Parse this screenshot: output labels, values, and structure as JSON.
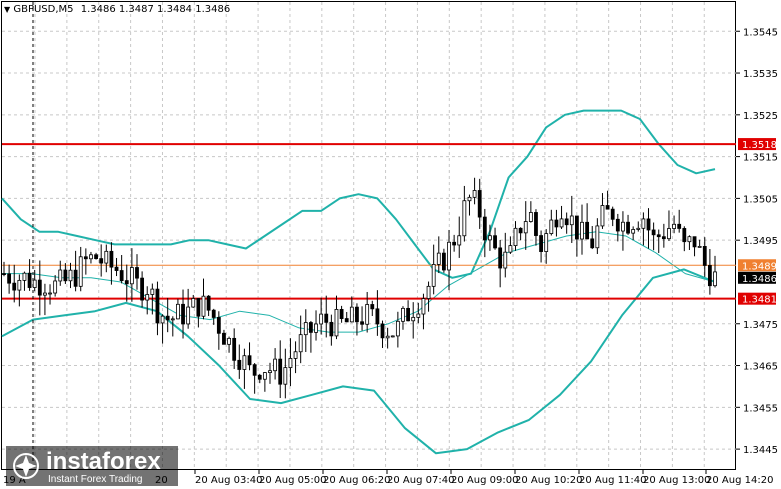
{
  "header": {
    "arrow": "▼",
    "symbol": "GBPUSD,M5",
    "ohlc": "1.3486 1.3487 1.3484 1.3486"
  },
  "colors": {
    "candle": "#000000",
    "bollinger": "#20b2aa",
    "level_line": "#e00000",
    "current_line": "#f08030",
    "label_red": "#e00000",
    "label_orange": "#f08030",
    "grid": "#c8c8c8"
  },
  "price_axis": {
    "ticks": [
      "1.3545",
      "1.3535",
      "1.3525",
      "1.3515",
      "1.3505",
      "1.3495",
      "1.3475",
      "1.3465",
      "1.3455",
      "1.3445"
    ]
  },
  "time_axis": {
    "ticks": [
      "20 Aug 03:40",
      "20 Aug 05:00",
      "20 Aug 06:20",
      "20 Aug 07:40",
      "20 Aug 09:00",
      "20 Aug 10:20",
      "20 Aug 11:40",
      "20 Aug 13:00",
      "20 Aug 14:20"
    ],
    "partial_first": "19 A",
    "partial_second": "20"
  },
  "levels": {
    "resistance": "1.3518",
    "current": "1.3489",
    "last": "1.3486",
    "support": "1.3481"
  },
  "watermark": {
    "brand": "instaforex",
    "tagline": "Instant Forex Trading"
  },
  "chart_data": {
    "type": "candlestick",
    "symbol": "GBPUSD",
    "timeframe": "M5",
    "y_range": [
      1.344,
      1.3552
    ],
    "x_ticks": [
      "20 Aug 03:40",
      "20 Aug 05:00",
      "20 Aug 06:20",
      "20 Aug 07:40",
      "20 Aug 09:00",
      "20 Aug 10:20",
      "20 Aug 11:40",
      "20 Aug 13:00",
      "20 Aug 14:20"
    ],
    "horizontal_levels": [
      1.3518,
      1.3489,
      1.3481
    ],
    "close_path": [
      1.3487,
      1.3486,
      1.3486,
      1.3485,
      1.3485,
      1.3484,
      1.3485,
      1.3487,
      1.349,
      1.3491,
      1.3489,
      1.3488,
      1.3486,
      1.3484,
      1.3484,
      1.3478,
      1.3476,
      1.3477,
      1.3478,
      1.348,
      1.3478,
      1.3474,
      1.347,
      1.3467,
      1.3463,
      1.3465,
      1.3464,
      1.3463,
      1.3468,
      1.3471,
      1.3474,
      1.3476,
      1.3475,
      1.3475,
      1.3476,
      1.3477,
      1.3476,
      1.3474,
      1.3473,
      1.3477,
      1.348,
      1.3483,
      1.3488,
      1.3492,
      1.3497,
      1.3505,
      1.3503,
      1.3495,
      1.3491,
      1.349,
      1.3498,
      1.3502,
      1.3493,
      1.3498,
      1.3504,
      1.35,
      1.3496,
      1.3494,
      1.35,
      1.3502,
      1.3499,
      1.35,
      1.3501,
      1.3495,
      1.3497,
      1.3499,
      1.3493,
      1.3495,
      1.3489,
      1.3486
    ],
    "bollinger_upper": [
      1.3505,
      1.35,
      1.3497,
      1.3497,
      1.3496,
      1.3495,
      1.3494,
      1.3494,
      1.3494,
      1.3494,
      1.3495,
      1.3495,
      1.3494,
      1.3493,
      1.3496,
      1.3499,
      1.3502,
      1.3502,
      1.3505,
      1.3506,
      1.3505,
      1.35,
      1.3494,
      1.3488,
      1.3486,
      1.3487,
      1.3497,
      1.351,
      1.3515,
      1.3522,
      1.3525,
      1.3526,
      1.3526,
      1.3526,
      1.3524,
      1.3518,
      1.3513,
      1.3511,
      1.3512
    ],
    "bollinger_middle": [
      1.3487,
      1.3487,
      1.3486,
      1.3486,
      1.3485,
      1.3481,
      1.3477,
      1.3476,
      1.3478,
      1.3477,
      1.3474,
      1.3473,
      1.3473,
      1.3475,
      1.3478,
      1.3484,
      1.3488,
      1.3492,
      1.3494,
      1.3496,
      1.3497,
      1.3496,
      1.3492,
      1.3487,
      1.3485
    ],
    "bollinger_lower": [
      1.3472,
      1.3476,
      1.3477,
      1.3478,
      1.348,
      1.3478,
      1.3472,
      1.3465,
      1.3457,
      1.3456,
      1.3458,
      1.346,
      1.3459,
      1.345,
      1.3444,
      1.3445,
      1.3449,
      1.3452,
      1.3458,
      1.3466,
      1.3477,
      1.3486,
      1.3488,
      1.3485
    ]
  }
}
